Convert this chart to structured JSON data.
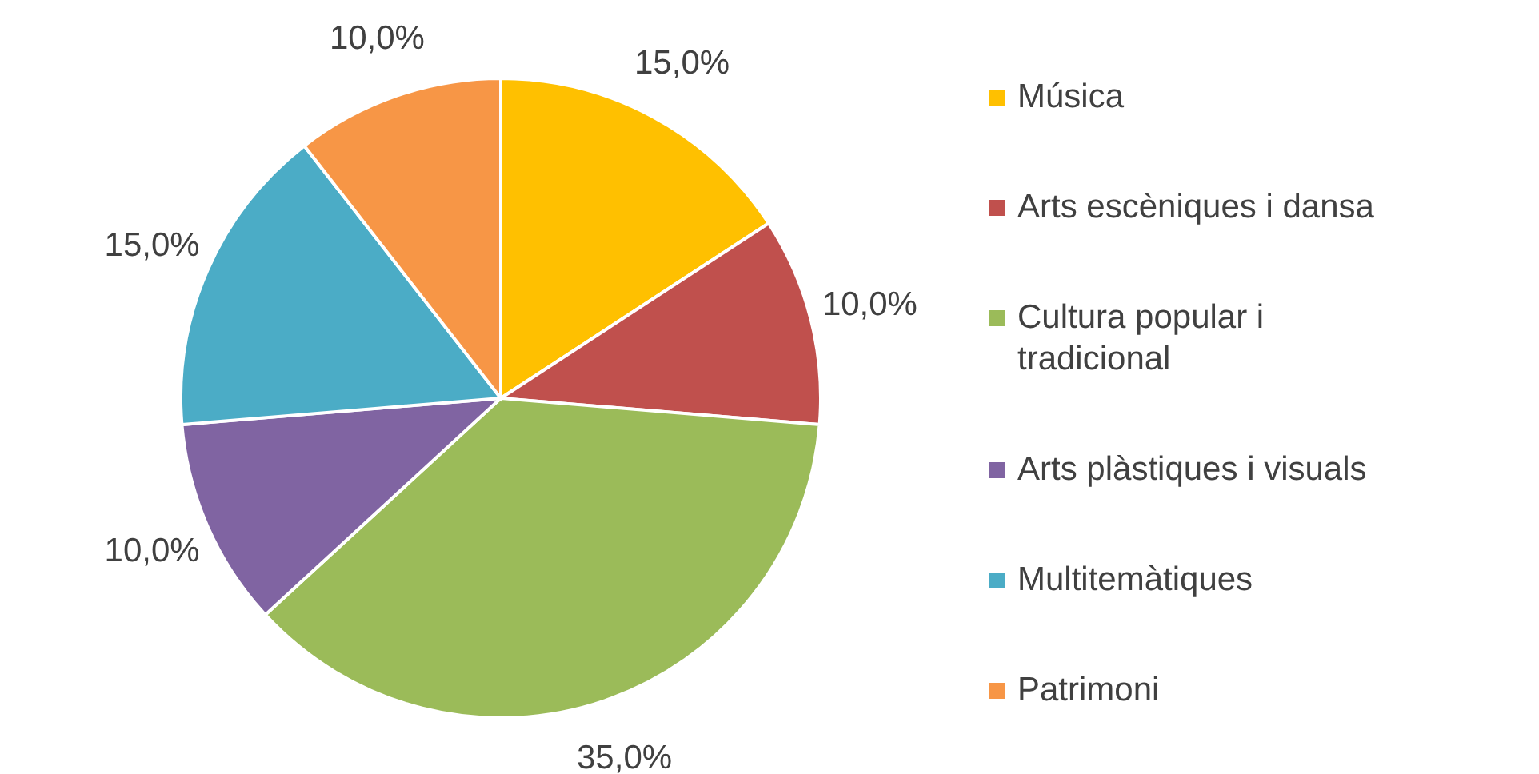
{
  "chart_data": {
    "type": "pie",
    "categories": [
      "Música",
      "Arts escèniques i dansa",
      "Cultura popular i tradicional",
      "Arts plàstiques i visuals",
      "Multitemàtiques",
      "Patrimoni"
    ],
    "values": [
      15,
      10,
      35,
      10,
      15,
      10
    ],
    "value_labels": [
      "15,0%",
      "10,0%",
      "35,0%",
      "10,0%",
      "15,0%",
      "10,0%"
    ],
    "colors": [
      "#ffc000",
      "#c0504d",
      "#9bbb59",
      "#8064a2",
      "#4bacc6",
      "#f79646"
    ],
    "legend": "right"
  }
}
